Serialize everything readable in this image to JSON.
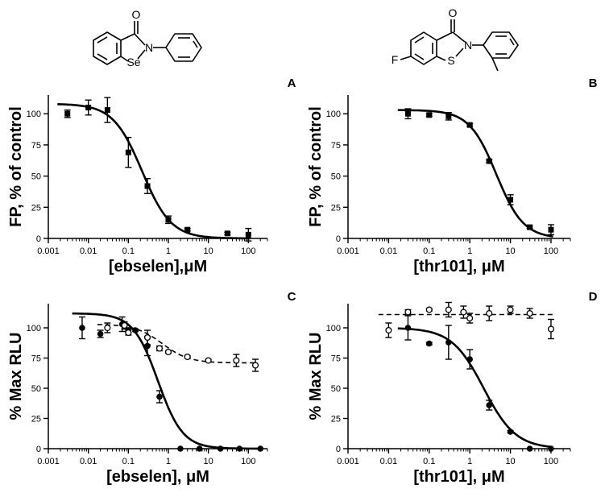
{
  "chart_data": [
    {
      "type": "scatter",
      "panel": "A",
      "xlabel": "[ebselen],μM",
      "ylabel": "FP, % of control",
      "xscale": "log",
      "xlim": [
        0.001,
        300
      ],
      "ylim": [
        0,
        115
      ],
      "x_ticks": [
        "0.001",
        "0.01",
        "0.1",
        "1",
        "10",
        "100"
      ],
      "y_ticks": [
        "0",
        "25",
        "50",
        "75",
        "100"
      ],
      "structure": {
        "heteroatom": "Se",
        "n_label": "N",
        "o_label": "O"
      },
      "series": [
        {
          "marker": "filled-square",
          "x": [
            0.003,
            0.01,
            0.03,
            0.1,
            0.3,
            1,
            3,
            30,
            100
          ],
          "y": [
            100,
            105,
            103,
            69,
            42,
            15,
            7,
            4,
            3
          ],
          "err": [
            3,
            6,
            10,
            12,
            6,
            3,
            1,
            1,
            5
          ],
          "fit": {
            "top": 108,
            "bottom": 0,
            "ic50": 0.22,
            "hill": 1.2
          }
        }
      ]
    },
    {
      "type": "scatter",
      "panel": "B",
      "xlabel": "[thr101], μM",
      "ylabel": "FP, % of control",
      "xscale": "log",
      "xlim": [
        0.001,
        300
      ],
      "ylim": [
        0,
        115
      ],
      "x_ticks": [
        "0.001",
        "0.01",
        "0.1",
        "1",
        "10",
        "100"
      ],
      "y_ticks": [
        "0",
        "25",
        "50",
        "75",
        "100"
      ],
      "structure": {
        "heteroatom": "S",
        "n_label": "N",
        "o_label": "O",
        "f_label": "F"
      },
      "series": [
        {
          "marker": "filled-square",
          "x": [
            0.03,
            0.1,
            0.3,
            1,
            3,
            10,
            30,
            100
          ],
          "y": [
            100,
            99,
            98,
            91,
            62,
            31,
            9,
            7
          ],
          "err": [
            4,
            1,
            3,
            1,
            1,
            4,
            1,
            4
          ],
          "fit": {
            "top": 103,
            "bottom": 0,
            "ic50": 4.5,
            "hill": 1.3
          }
        }
      ]
    },
    {
      "type": "scatter",
      "panel": "C",
      "xlabel": "[ebselen], μM",
      "ylabel": "% Max RLU",
      "xscale": "log",
      "xlim": [
        0.001,
        300
      ],
      "ylim": [
        0,
        120
      ],
      "x_ticks": [
        "0.001",
        "0.01",
        "0.1",
        "1",
        "10",
        "100"
      ],
      "y_ticks": [
        "0",
        "25",
        "50",
        "75",
        "100"
      ],
      "series": [
        {
          "marker": "filled-circle",
          "x": [
            0.007,
            0.02,
            0.07,
            0.1,
            0.15,
            0.3,
            0.6,
            2,
            6,
            20,
            60,
            200
          ],
          "y": [
            100,
            95,
            103,
            98,
            98,
            85,
            43,
            0,
            0,
            0,
            0,
            0
          ],
          "err": [
            9,
            3,
            6,
            2,
            1,
            8,
            5,
            0,
            0,
            0,
            0,
            0
          ],
          "fit": {
            "top": 112,
            "bottom": 0,
            "ic50": 0.55,
            "hill": 1.4,
            "line": "solid"
          }
        },
        {
          "marker": "open-circle",
          "x": [
            0.03,
            0.08,
            0.1,
            0.3,
            0.6,
            1,
            3,
            10,
            50,
            150
          ],
          "y": [
            100,
            102,
            96,
            92,
            83,
            80,
            76,
            73,
            73,
            69
          ],
          "err": [
            4,
            3,
            2,
            6,
            2,
            1,
            1,
            1,
            5,
            5
          ],
          "fit": {
            "top": 103,
            "bottom": 71,
            "ic50": 0.7,
            "hill": 1.3,
            "line": "dashed"
          }
        }
      ]
    },
    {
      "type": "scatter",
      "panel": "D",
      "xlabel": "[thr101], μM",
      "ylabel": "% Max RLU",
      "xscale": "log",
      "xlim": [
        0.001,
        300
      ],
      "ylim": [
        0,
        120
      ],
      "x_ticks": [
        "0.001",
        "0.01",
        "0.1",
        "1",
        "10",
        "100"
      ],
      "y_ticks": [
        "0",
        "25",
        "50",
        "75",
        "100"
      ],
      "series": [
        {
          "marker": "filled-circle",
          "x": [
            0.03,
            0.1,
            0.3,
            1,
            3,
            10,
            30,
            100
          ],
          "y": [
            100,
            87,
            88,
            74,
            36,
            14,
            0,
            0
          ],
          "err": [
            10,
            1,
            14,
            8,
            4,
            1,
            0,
            0
          ],
          "fit": {
            "top": 100,
            "bottom": 0,
            "ic50": 2.2,
            "hill": 1.1,
            "line": "solid"
          }
        },
        {
          "marker": "open-circle",
          "x": [
            0.01,
            0.03,
            0.1,
            0.3,
            0.7,
            1,
            3,
            10,
            30,
            100
          ],
          "y": [
            98,
            113,
            115,
            115,
            113,
            108,
            112,
            115,
            112,
            99
          ],
          "err": [
            6,
            2,
            1,
            6,
            5,
            4,
            6,
            3,
            4,
            8
          ],
          "fit": {
            "level": 111,
            "line": "dashed"
          }
        }
      ]
    }
  ]
}
